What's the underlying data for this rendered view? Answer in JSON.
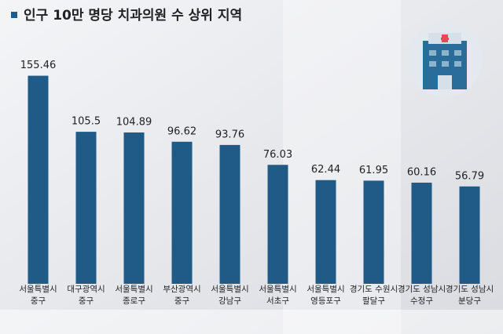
{
  "chart_data": {
    "type": "bar",
    "title": "인구 10만 명당 치과의원 수 상위 지역",
    "categories": [
      [
        "서울특별시",
        "중구"
      ],
      [
        "대구광역시",
        "중구"
      ],
      [
        "서울특별시",
        "종로구"
      ],
      [
        "부산광역시",
        "중구"
      ],
      [
        "서울특별시",
        "강남구"
      ],
      [
        "서울특별시",
        "서초구"
      ],
      [
        "서울특별시",
        "영등포구"
      ],
      [
        "경기도 수원시",
        "팔달구"
      ],
      [
        "경기도 성남시",
        "수정구"
      ],
      [
        "경기도 성남시",
        "분당구"
      ]
    ],
    "values": [
      155.46,
      105.5,
      104.89,
      96.62,
      93.76,
      76.03,
      62.44,
      61.95,
      60.16,
      56.79
    ],
    "color": "#1f5b86",
    "ylim": [
      -30,
      195
    ]
  }
}
